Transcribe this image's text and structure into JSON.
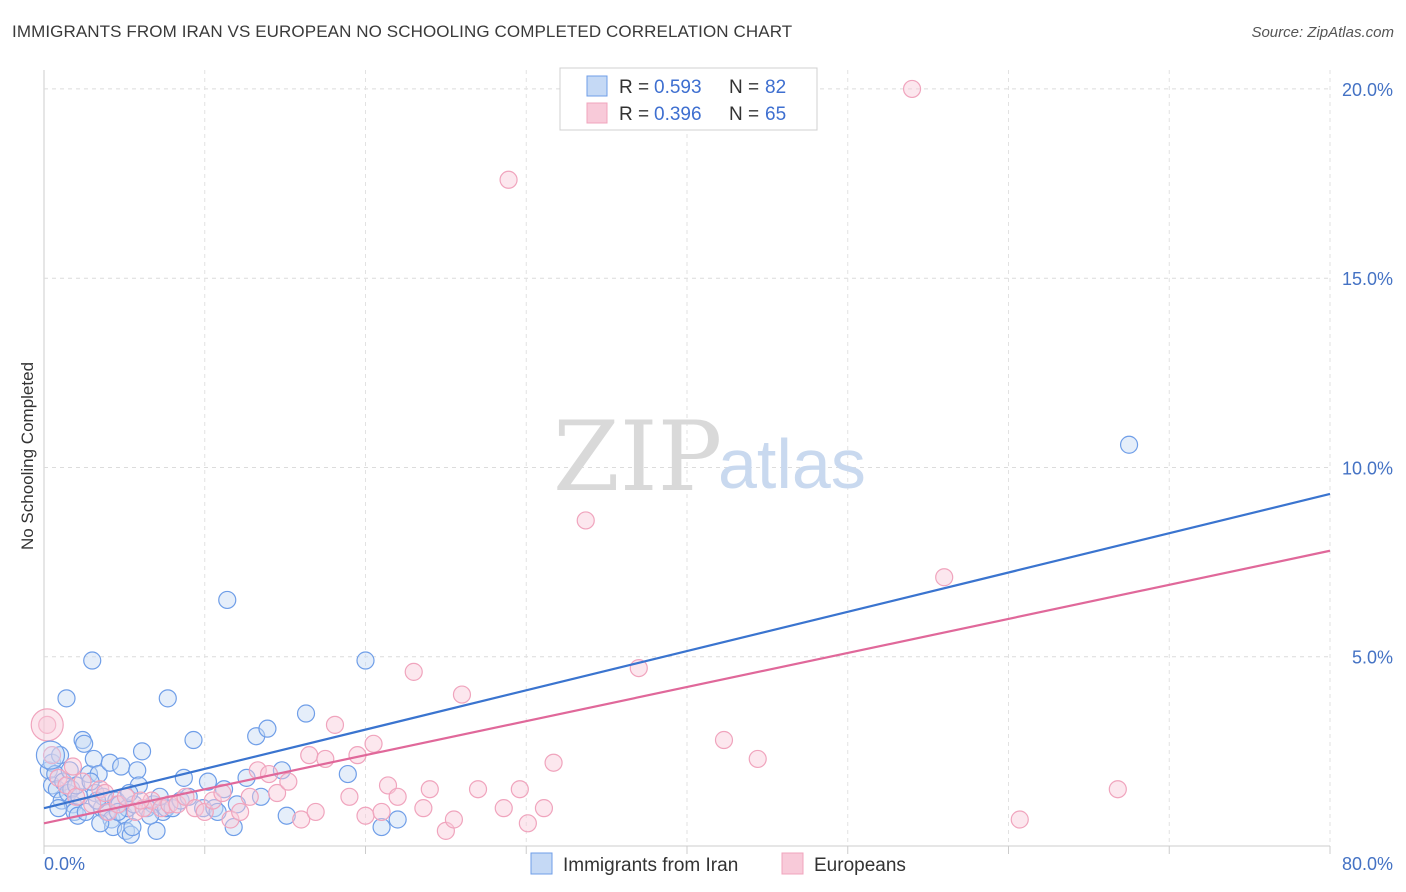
{
  "chart_data": {
    "type": "scatter",
    "title": "IMMIGRANTS FROM IRAN VS EUROPEAN NO SCHOOLING COMPLETED CORRELATION CHART",
    "source": "Source: ZipAtlas.com",
    "xlabel": "",
    "ylabel": "No Schooling Completed",
    "xlim": [
      0,
      80
    ],
    "ylim": [
      0,
      20.5
    ],
    "x_tick_labels": [
      "0.0%",
      "80.0%"
    ],
    "y_ticks": [
      5,
      10,
      15,
      20
    ],
    "y_tick_labels": [
      "5.0%",
      "10.0%",
      "15.0%",
      "20.0%"
    ],
    "grid": true,
    "watermark": {
      "part1": "ZIP",
      "part2": "atlas"
    },
    "legend": {
      "position": "top-center",
      "entries": [
        {
          "r_label": "R = ",
          "r_value": "0.593",
          "n_label": "N = ",
          "n_value": "82"
        },
        {
          "r_label": "R = ",
          "r_value": "0.396",
          "n_label": "N = ",
          "n_value": "65"
        }
      ]
    },
    "series": [
      {
        "name": "Immigrants from Iran",
        "color": "#6f9ee8",
        "line_color": "#3a74cf",
        "trend": {
          "x0": 0,
          "y0": 1.0,
          "x1": 80,
          "y1": 9.3
        },
        "points": [
          [
            0.3,
            2.0
          ],
          [
            0.5,
            2.2
          ],
          [
            0.5,
            1.6
          ],
          [
            0.7,
            1.9
          ],
          [
            0.8,
            1.5
          ],
          [
            1.0,
            2.4
          ],
          [
            1.1,
            1.2
          ],
          [
            1.2,
            1.7
          ],
          [
            1.4,
            3.9
          ],
          [
            1.5,
            1.4
          ],
          [
            1.7,
            1.5
          ],
          [
            1.8,
            1.1
          ],
          [
            1.9,
            0.9
          ],
          [
            2.1,
            0.8
          ],
          [
            2.2,
            1.3
          ],
          [
            2.4,
            2.8
          ],
          [
            2.5,
            2.7
          ],
          [
            2.6,
            0.9
          ],
          [
            2.8,
            1.9
          ],
          [
            3.0,
            4.9
          ],
          [
            3.1,
            2.3
          ],
          [
            3.2,
            1.4
          ],
          [
            3.4,
            1.9
          ],
          [
            3.6,
            1.0
          ],
          [
            3.7,
            1.3
          ],
          [
            3.9,
            0.9
          ],
          [
            4.1,
            2.2
          ],
          [
            4.2,
            0.7
          ],
          [
            4.3,
            0.5
          ],
          [
            4.5,
            1.2
          ],
          [
            4.7,
            1.1
          ],
          [
            4.8,
            2.1
          ],
          [
            5.0,
            0.8
          ],
          [
            5.1,
            0.4
          ],
          [
            5.2,
            1.0
          ],
          [
            5.4,
            0.3
          ],
          [
            5.5,
            0.5
          ],
          [
            5.6,
            1.1
          ],
          [
            5.8,
            2.0
          ],
          [
            5.9,
            1.6
          ],
          [
            6.1,
            2.5
          ],
          [
            6.4,
            1.0
          ],
          [
            6.8,
            1.1
          ],
          [
            7.0,
            0.4
          ],
          [
            7.4,
            0.9
          ],
          [
            7.6,
            1.0
          ],
          [
            7.7,
            3.9
          ],
          [
            8.0,
            1.0
          ],
          [
            8.5,
            1.2
          ],
          [
            8.7,
            1.8
          ],
          [
            9.3,
            2.8
          ],
          [
            9.9,
            1.0
          ],
          [
            10.2,
            1.7
          ],
          [
            10.6,
            1.0
          ],
          [
            11.2,
            1.5
          ],
          [
            11.4,
            6.5
          ],
          [
            11.8,
            0.5
          ],
          [
            12.6,
            1.8
          ],
          [
            13.2,
            2.9
          ],
          [
            13.5,
            1.3
          ],
          [
            13.9,
            3.1
          ],
          [
            14.8,
            2.0
          ],
          [
            15.1,
            0.8
          ],
          [
            16.3,
            3.5
          ],
          [
            18.9,
            1.9
          ],
          [
            20.0,
            4.9
          ],
          [
            21.0,
            0.5
          ],
          [
            22.0,
            0.7
          ],
          [
            67.5,
            10.6
          ],
          [
            2.0,
            1.6
          ],
          [
            3.3,
            1.2
          ],
          [
            4.6,
            0.9
          ],
          [
            6.6,
            0.8
          ],
          [
            9.0,
            1.3
          ],
          [
            12.0,
            1.1
          ],
          [
            0.9,
            1.0
          ],
          [
            1.6,
            2.0
          ],
          [
            2.9,
            1.7
          ],
          [
            3.5,
            0.6
          ],
          [
            5.3,
            1.4
          ],
          [
            7.2,
            1.3
          ],
          [
            10.8,
            0.9
          ]
        ]
      },
      {
        "name": "Europeans",
        "color": "#f0a4bd",
        "line_color": "#e0689a",
        "trend": {
          "x0": 0,
          "y0": 0.6,
          "x1": 80,
          "y1": 7.8
        },
        "points": [
          [
            0.2,
            3.2
          ],
          [
            0.5,
            2.4
          ],
          [
            0.9,
            1.8
          ],
          [
            1.4,
            1.6
          ],
          [
            2.0,
            1.3
          ],
          [
            2.4,
            1.7
          ],
          [
            3.0,
            1.1
          ],
          [
            3.5,
            1.5
          ],
          [
            4.0,
            0.9
          ],
          [
            4.6,
            1.1
          ],
          [
            5.1,
            1.3
          ],
          [
            5.7,
            0.9
          ],
          [
            6.2,
            1.0
          ],
          [
            6.7,
            1.2
          ],
          [
            7.3,
            1.0
          ],
          [
            7.8,
            1.1
          ],
          [
            8.3,
            1.1
          ],
          [
            8.8,
            1.3
          ],
          [
            9.4,
            1.0
          ],
          [
            10.0,
            0.9
          ],
          [
            10.5,
            1.2
          ],
          [
            11.1,
            1.4
          ],
          [
            11.6,
            0.7
          ],
          [
            12.2,
            0.9
          ],
          [
            12.8,
            1.3
          ],
          [
            13.3,
            2.0
          ],
          [
            14.0,
            1.9
          ],
          [
            14.5,
            1.4
          ],
          [
            15.2,
            1.7
          ],
          [
            16.0,
            0.7
          ],
          [
            16.5,
            2.4
          ],
          [
            16.9,
            0.9
          ],
          [
            17.5,
            2.3
          ],
          [
            18.1,
            3.2
          ],
          [
            19.0,
            1.3
          ],
          [
            19.5,
            2.4
          ],
          [
            20.0,
            0.8
          ],
          [
            20.5,
            2.7
          ],
          [
            21.0,
            0.9
          ],
          [
            21.4,
            1.6
          ],
          [
            22.0,
            1.3
          ],
          [
            23.0,
            4.6
          ],
          [
            23.6,
            1.0
          ],
          [
            24.0,
            1.5
          ],
          [
            25.0,
            0.4
          ],
          [
            25.5,
            0.7
          ],
          [
            26.0,
            4.0
          ],
          [
            27.0,
            1.5
          ],
          [
            28.6,
            1.0
          ],
          [
            28.9,
            17.6
          ],
          [
            29.6,
            1.5
          ],
          [
            30.1,
            0.6
          ],
          [
            31.1,
            1.0
          ],
          [
            31.7,
            2.2
          ],
          [
            33.7,
            8.6
          ],
          [
            37.0,
            4.7
          ],
          [
            42.3,
            2.8
          ],
          [
            44.4,
            2.3
          ],
          [
            54.0,
            20.0
          ],
          [
            56.0,
            7.1
          ],
          [
            60.7,
            0.7
          ],
          [
            66.8,
            1.5
          ],
          [
            1.8,
            2.1
          ],
          [
            6.0,
            1.2
          ],
          [
            3.8,
            1.4
          ]
        ]
      }
    ]
  }
}
